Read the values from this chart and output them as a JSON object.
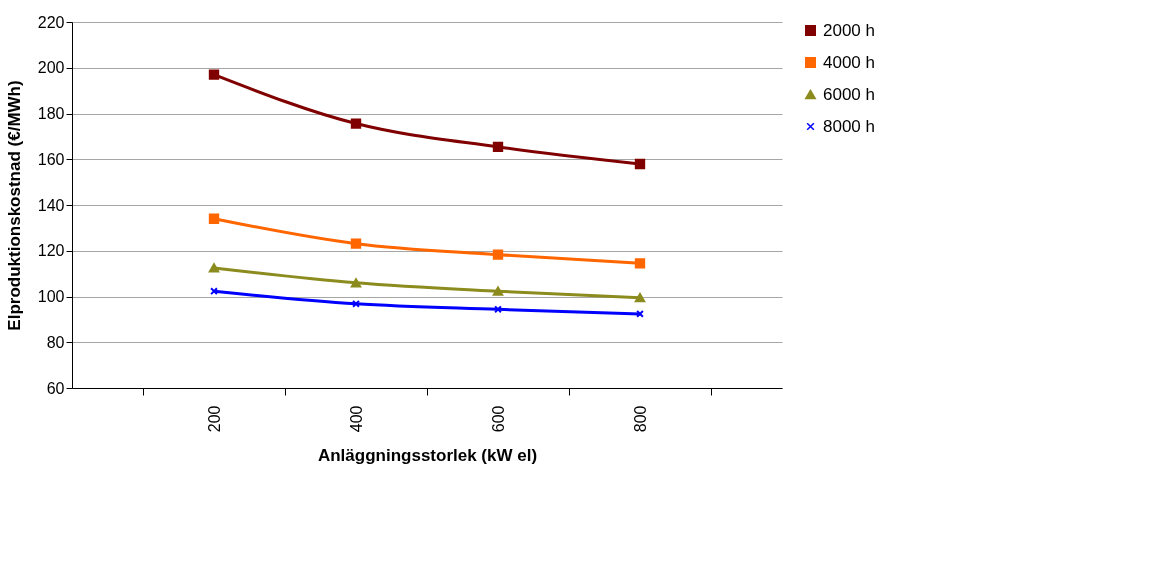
{
  "chart_data": {
    "type": "line",
    "xlabel": "Anläggningsstorlek (kW el)",
    "ylabel": "Elproduktionskostnad (€/MWh)",
    "categories": [
      "200",
      "400",
      "600",
      "800"
    ],
    "ylim": [
      60,
      220
    ],
    "yticks": [
      60,
      80,
      100,
      120,
      140,
      160,
      180,
      200,
      220
    ],
    "grid": "y",
    "legend": "right",
    "series": [
      {
        "name": "2000 h",
        "color": "#800000",
        "marker": "square",
        "values": [
          197,
          175.6,
          165.4,
          157.9
        ]
      },
      {
        "name": "4000 h",
        "color": "#ff6600",
        "marker": "square",
        "values": [
          134,
          123.1,
          118.3,
          114.5
        ]
      },
      {
        "name": "6000 h",
        "color": "#8b8b1e",
        "marker": "triangle",
        "values": [
          112.5,
          106,
          102.3,
          99.5
        ]
      },
      {
        "name": "8000 h",
        "color": "#0000ff",
        "marker": "cross",
        "values": [
          102.3,
          96.8,
          94.4,
          92.4
        ]
      }
    ]
  }
}
